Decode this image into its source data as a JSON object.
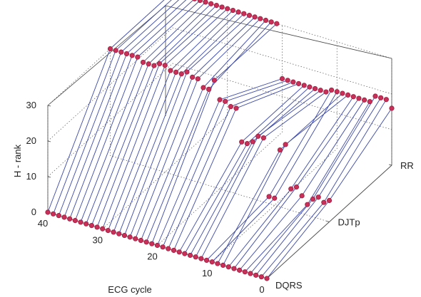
{
  "chart_data": {
    "type": "line",
    "variant": "3d-ribbon",
    "title": "",
    "xlabel": "ECG cycle",
    "ylabel": "",
    "zlabel": "H - rank",
    "x_ticks": [
      "0",
      "10",
      "20",
      "30",
      "40"
    ],
    "y_ticks": [
      "DQRS",
      "DJTp",
      "RR"
    ],
    "z_ticks": [
      "0",
      "10",
      "20",
      "30"
    ],
    "xlim": [
      0,
      40
    ],
    "zlim": [
      0,
      30
    ],
    "grid": true,
    "colors": {
      "line": "#3b49a8",
      "marker_edge": "#9d1f3f",
      "marker_fill": "#c8305a",
      "axis": "#444444",
      "grid": "#555555"
    },
    "x": [
      40,
      39,
      38,
      37,
      36,
      35,
      34,
      33,
      32,
      31,
      30,
      29,
      28,
      27,
      26,
      25,
      24,
      23,
      22,
      21,
      20,
      19,
      18,
      17,
      16,
      15,
      14,
      13,
      12,
      11,
      10,
      9,
      8,
      7,
      6,
      5,
      4,
      3,
      2,
      1,
      0
    ],
    "series": [
      {
        "name": "DQRS",
        "values": [
          0,
          0,
          0,
          0,
          0,
          0,
          0,
          0,
          0,
          0,
          0,
          0,
          0,
          0,
          0,
          0,
          0,
          0,
          0,
          0,
          0,
          0,
          0,
          0,
          0,
          0,
          0,
          0,
          0,
          0,
          0,
          0,
          0,
          0,
          0,
          0,
          0,
          0,
          0,
          0,
          0
        ]
      },
      {
        "name": "DJTp",
        "values": [
          30,
          30,
          30,
          30,
          30,
          30,
          29,
          29,
          29,
          30,
          30,
          29,
          29,
          29,
          30,
          29,
          29,
          27,
          27,
          30,
          25,
          25,
          24,
          24,
          15,
          15,
          16,
          18,
          18,
          2,
          2,
          16,
          18,
          6,
          7,
          5,
          3,
          5,
          6,
          5,
          6
        ]
      },
      {
        "name": "RR",
        "values": [
          30,
          30,
          30,
          30,
          30,
          30,
          30,
          30,
          30,
          30,
          30,
          30,
          30,
          30,
          30,
          30,
          30,
          30,
          30,
          30,
          15,
          15,
          15,
          15,
          15,
          15,
          15,
          15,
          15,
          16,
          16,
          16,
          16,
          16,
          16,
          16,
          16,
          18,
          18,
          18,
          16
        ]
      }
    ]
  }
}
